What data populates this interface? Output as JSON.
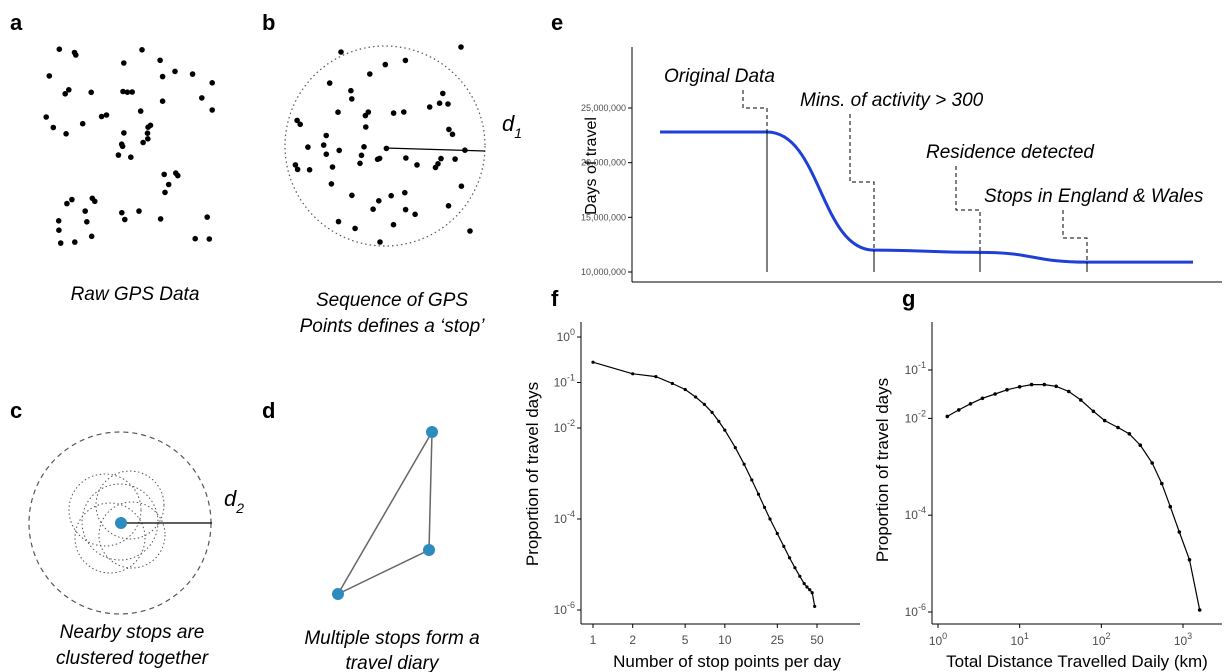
{
  "panels": {
    "a": {
      "label": "a",
      "caption": "Raw GPS Data"
    },
    "b": {
      "label": "b",
      "caption_line1": "Sequence of GPS",
      "caption_line2": "Points defines a ‘stop’",
      "radius_symbol": "d",
      "radius_subscript": "1"
    },
    "c": {
      "label": "c",
      "caption_line1": "Nearby stops are",
      "caption_line2": "clustered together",
      "radius_symbol": "d",
      "radius_subscript": "2"
    },
    "d": {
      "label": "d",
      "caption_line1": "Multiple stops form a",
      "caption_line2": "travel diary"
    },
    "e": {
      "label": "e"
    },
    "f": {
      "label": "f"
    },
    "g": {
      "label": "g"
    }
  },
  "colors": {
    "stop_blue": "#2e8bc0",
    "line_blue": "#1f3fd6",
    "dots": "#000000"
  },
  "chart_data": [
    {
      "panel": "e",
      "type": "line",
      "ylabel": "Days of travel",
      "xlabel": "",
      "yticks": [
        "10,000,000",
        "15,000,000",
        "20,000,000",
        "25,000,000"
      ],
      "ylim": [
        9500000,
        31000000
      ],
      "steps": [
        {
          "label": "Original Data",
          "value": 22800000
        },
        {
          "label": "Mins. of activity > 300",
          "value": 12000000
        },
        {
          "label": "Residence detected",
          "value": 11800000
        },
        {
          "label": "Stops in England & Wales",
          "value": 10900000
        }
      ]
    },
    {
      "panel": "f",
      "type": "line",
      "xlabel": "Number of stop points per day",
      "ylabel": "Proportion of travel days",
      "xscale": "log",
      "yscale": "log",
      "xticks": [
        "1",
        "2",
        "5",
        "10",
        "25",
        "50"
      ],
      "yticks": [
        "10",
        "10",
        "10",
        "10"
      ],
      "ytick_exponents": [
        "0",
        "-1",
        "-2",
        "-4",
        "-6"
      ],
      "ytick_base": "10",
      "ytick_top": "10",
      "x": [
        1,
        2,
        3,
        4,
        5,
        6,
        7,
        8,
        9,
        10,
        12,
        14,
        16,
        18,
        20,
        22,
        25,
        28,
        31,
        34,
        37,
        40,
        42,
        44,
        46,
        48
      ],
      "y": [
        0.28,
        0.155,
        0.135,
        0.095,
        0.07,
        0.048,
        0.033,
        0.022,
        0.014,
        0.009,
        0.0037,
        0.0016,
        0.00072,
        0.00035,
        0.00018,
        0.0001,
        4.8e-05,
        2.5e-05,
        1.4e-05,
        8.5e-06,
        5.5e-06,
        3.8e-06,
        3.2e-06,
        2.8e-06,
        2.4e-06,
        1.2e-06
      ]
    },
    {
      "panel": "g",
      "type": "line",
      "xlabel": "Total Distance Travelled Daily (km)",
      "ylabel": "Proportion of travel days",
      "xscale": "log",
      "yscale": "log",
      "x": [
        1.3,
        1.8,
        2.5,
        3.5,
        5,
        7,
        10,
        14,
        20,
        28,
        40,
        56,
        80,
        110,
        160,
        220,
        300,
        420,
        550,
        700,
        900,
        1200,
        1600
      ],
      "y": [
        0.011,
        0.015,
        0.02,
        0.026,
        0.032,
        0.039,
        0.045,
        0.05,
        0.05,
        0.046,
        0.036,
        0.024,
        0.014,
        0.009,
        0.0065,
        0.0048,
        0.0028,
        0.0012,
        0.00045,
        0.00015,
        4.5e-05,
        1.2e-05,
        1.1e-06
      ]
    }
  ],
  "tick_text": {
    "f_x": [
      "1",
      "2",
      "5",
      "10",
      "25",
      "50"
    ],
    "f_y_base": "10",
    "f_y_exp": [
      "0",
      "-1",
      "-2",
      "-4",
      "-6"
    ],
    "g_x_exp": [
      "0",
      "1",
      "2",
      "3"
    ],
    "g_y_exp": [
      "-1",
      "-2",
      "-4",
      "-6"
    ]
  }
}
